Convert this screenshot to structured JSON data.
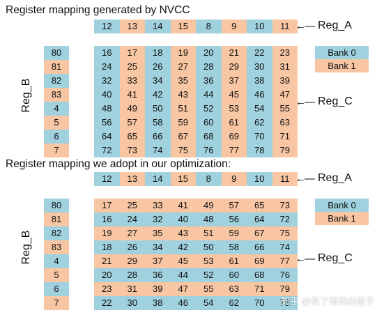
{
  "top": {
    "title": "Register mapping generated by NVCC",
    "reg_a_values": [
      "12",
      "13",
      "14",
      "15",
      "8",
      "9",
      "10",
      "11"
    ],
    "reg_a_label": "Reg_A",
    "reg_b_label": "Reg_B",
    "reg_b_values": [
      "80",
      "81",
      "82",
      "83",
      "4",
      "5",
      "6",
      "7"
    ],
    "reg_c_label": "Reg_C",
    "grid": [
      [
        "16",
        "17",
        "18",
        "19",
        "20",
        "21",
        "22",
        "23"
      ],
      [
        "24",
        "25",
        "26",
        "27",
        "28",
        "29",
        "30",
        "31"
      ],
      [
        "32",
        "33",
        "34",
        "35",
        "36",
        "37",
        "38",
        "39"
      ],
      [
        "40",
        "41",
        "42",
        "43",
        "44",
        "45",
        "46",
        "47"
      ],
      [
        "48",
        "49",
        "50",
        "51",
        "52",
        "53",
        "54",
        "55"
      ],
      [
        "56",
        "57",
        "58",
        "59",
        "60",
        "61",
        "62",
        "63"
      ],
      [
        "64",
        "65",
        "66",
        "67",
        "68",
        "69",
        "70",
        "71"
      ],
      [
        "72",
        "73",
        "74",
        "75",
        "76",
        "77",
        "78",
        "79"
      ]
    ],
    "legend": [
      "Bank 0",
      "Bank 1"
    ]
  },
  "bottom": {
    "title": "Register mapping we adopt in our optimization:",
    "reg_a_values": [
      "12",
      "13",
      "14",
      "15",
      "8",
      "9",
      "10",
      "11"
    ],
    "reg_a_label": "Reg_A",
    "reg_b_label": "Reg_B",
    "reg_b_values": [
      "80",
      "81",
      "82",
      "83",
      "4",
      "5",
      "6",
      "7"
    ],
    "reg_c_label": "Reg_C",
    "grid": [
      [
        "17",
        "25",
        "33",
        "41",
        "49",
        "57",
        "65",
        "73"
      ],
      [
        "16",
        "24",
        "32",
        "40",
        "48",
        "56",
        "64",
        "72"
      ],
      [
        "19",
        "27",
        "35",
        "43",
        "51",
        "59",
        "67",
        "75"
      ],
      [
        "18",
        "26",
        "34",
        "42",
        "50",
        "58",
        "66",
        "74"
      ],
      [
        "21",
        "29",
        "37",
        "45",
        "53",
        "61",
        "69",
        "77"
      ],
      [
        "20",
        "28",
        "36",
        "44",
        "52",
        "60",
        "68",
        "76"
      ],
      [
        "23",
        "31",
        "39",
        "47",
        "55",
        "63",
        "71",
        "79"
      ],
      [
        "22",
        "30",
        "38",
        "46",
        "54",
        "62",
        "70",
        "78"
      ]
    ],
    "legend": [
      "Bank 0",
      "Bank 1"
    ]
  },
  "colors": {
    "bank0": "#9fd1df",
    "bank1": "#f8c6a2"
  },
  "watermark": "知乎 @有了琦琦的棍子"
}
